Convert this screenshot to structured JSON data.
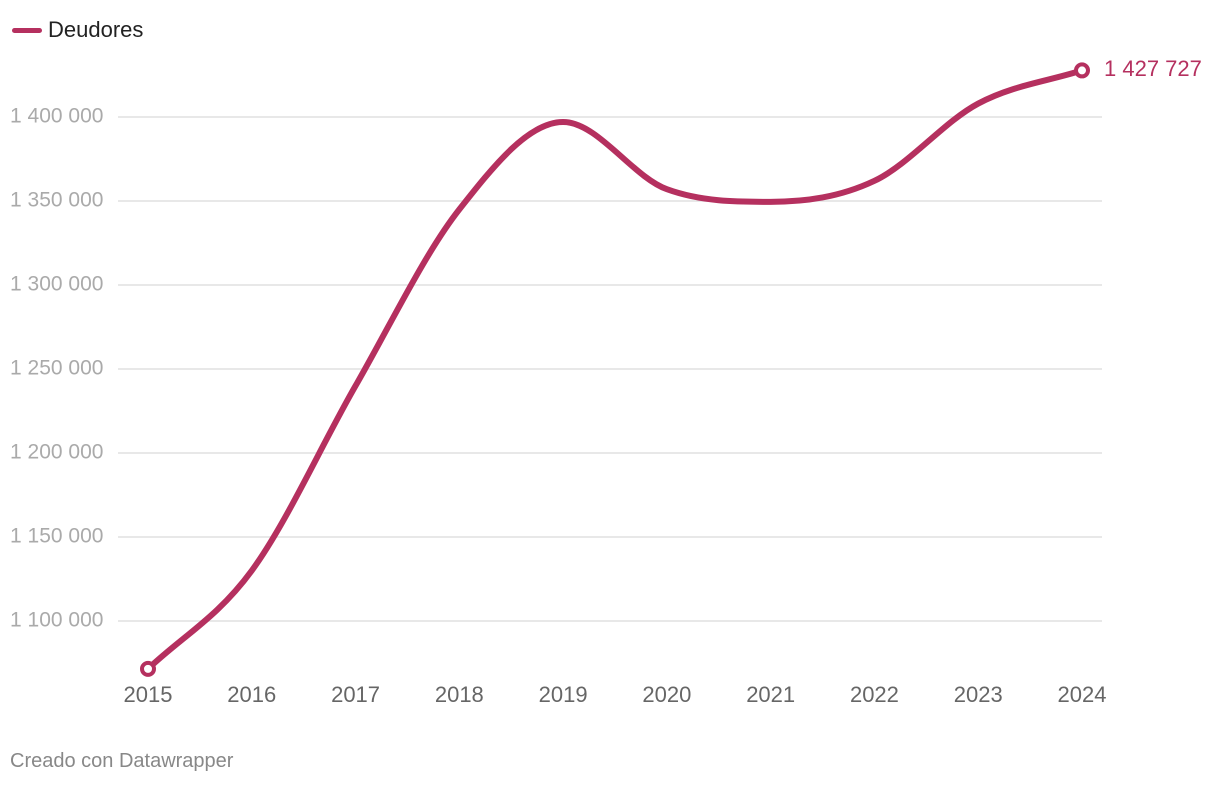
{
  "legend": {
    "label": "Deudores"
  },
  "footer": {
    "credit": "Creado con Datawrapper"
  },
  "colors": {
    "series": "#b5305f",
    "grid": "#e1e1e1",
    "tick": "#aaaaaa",
    "xtick": "#666666"
  },
  "chart_data": {
    "type": "line",
    "title": "",
    "xlabel": "",
    "ylabel": "",
    "x": [
      "2015",
      "2016",
      "2017",
      "2018",
      "2019",
      "2020",
      "2021",
      "2022",
      "2023",
      "2024"
    ],
    "series": [
      {
        "name": "Deudores",
        "values": [
          1071500,
          1130000,
          1240000,
          1345000,
          1397000,
          1357000,
          1349500,
          1362000,
          1408000,
          1427727
        ]
      }
    ],
    "ylim": [
      1072000,
      1427727
    ],
    "yticks": [
      1100000,
      1150000,
      1200000,
      1250000,
      1300000,
      1350000,
      1400000
    ],
    "ytick_labels": [
      "1 100 000",
      "1 150 000",
      "1 200 000",
      "1 250 000",
      "1 300 000",
      "1 350 000",
      "1 400 000"
    ],
    "end_label": "1 427 727",
    "grid": true,
    "legend_position": "top-left"
  }
}
